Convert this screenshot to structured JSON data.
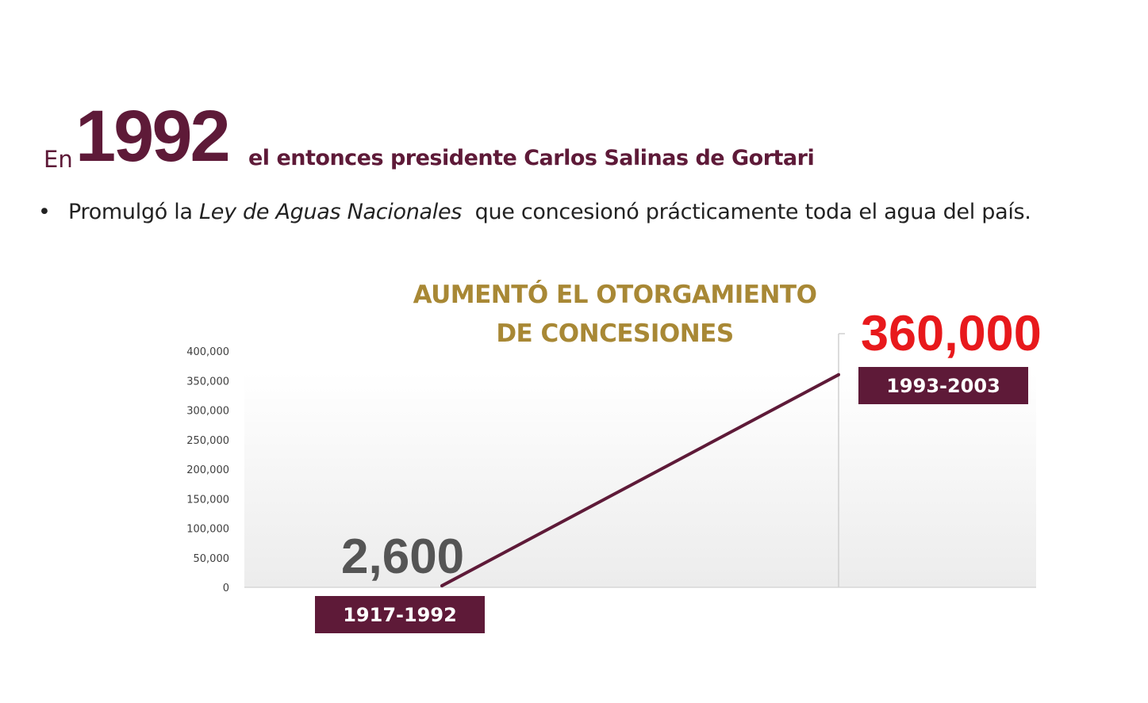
{
  "heading": {
    "prefix": "En",
    "year": "1992",
    "rest": "el entonces presidente Carlos Salinas de Gortari"
  },
  "bullet": {
    "symbol": "•",
    "text_before": "Promulgó la ",
    "text_italic": "Ley de Aguas Nacionales",
    "text_after": "  que concesionó prácticamente toda el agua del país."
  },
  "colors": {
    "maroon": "#5e1a38",
    "gold": "#a88835",
    "red": "#e8191c",
    "gray_value": "#555555"
  },
  "chart_data": {
    "type": "line",
    "title_lines": [
      "AUMENTÓ EL OTORGAMIENTO",
      "DE CONCESIONES"
    ],
    "ylim": [
      0,
      400000
    ],
    "y_ticks": [
      "0",
      "50,000",
      "100,000",
      "150,000",
      "200,000",
      "250,000",
      "300,000",
      "350,000",
      "400,000"
    ],
    "y_tick_values": [
      0,
      50000,
      100000,
      150000,
      200000,
      250000,
      300000,
      350000,
      400000
    ],
    "grid": false,
    "series": [
      {
        "color": "#5e1a38",
        "points": [
          {
            "period": "1917-1992",
            "value": 2600,
            "value_label": "2,600"
          },
          {
            "period": "1993-2003",
            "value": 360000,
            "value_label": "360,000"
          }
        ]
      }
    ]
  }
}
